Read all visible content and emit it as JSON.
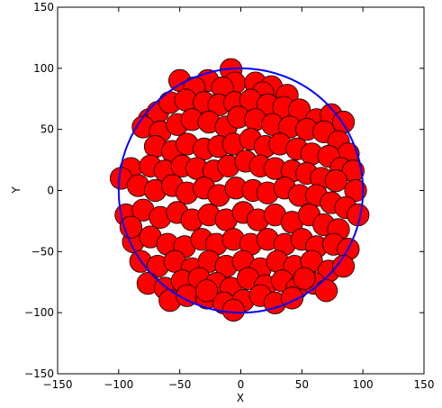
{
  "chart_data": {
    "type": "scatter",
    "title": "",
    "xlabel": "X",
    "ylabel": "Y",
    "xlim": [
      -150,
      150
    ],
    "ylim": [
      -150,
      150
    ],
    "xticks": [
      "−150",
      "−100",
      "−50",
      "0",
      "50",
      "100",
      "150"
    ],
    "yticks": [
      "−150",
      "−100",
      "−50",
      "0",
      "50",
      "100",
      "150"
    ],
    "grid": false,
    "legend": false,
    "marker_radius_units": 9,
    "marker_color": "#ff0000",
    "marker_edge_color": "#000000",
    "boundary_circle": {
      "center": [
        0,
        0
      ],
      "radius": 100,
      "color": "#0000ff"
    },
    "points": [
      [
        -8,
        99
      ],
      [
        -50,
        90
      ],
      [
        -27,
        90
      ],
      [
        -5,
        88
      ],
      [
        -15,
        84
      ],
      [
        -38,
        84
      ],
      [
        12,
        88
      ],
      [
        25,
        85
      ],
      [
        18,
        80
      ],
      [
        38,
        78
      ],
      [
        -75,
        58
      ],
      [
        -68,
        64
      ],
      [
        -58,
        72
      ],
      [
        -45,
        74
      ],
      [
        -30,
        72
      ],
      [
        -18,
        70
      ],
      [
        -5,
        72
      ],
      [
        8,
        74
      ],
      [
        22,
        70
      ],
      [
        35,
        68
      ],
      [
        48,
        66
      ],
      [
        62,
        58
      ],
      [
        74,
        62
      ],
      [
        84,
        56
      ],
      [
        -80,
        52
      ],
      [
        -66,
        48
      ],
      [
        -52,
        54
      ],
      [
        -40,
        58
      ],
      [
        -26,
        56
      ],
      [
        -12,
        52
      ],
      [
        -2,
        60
      ],
      [
        12,
        58
      ],
      [
        26,
        54
      ],
      [
        40,
        52
      ],
      [
        54,
        50
      ],
      [
        68,
        48
      ],
      [
        80,
        40
      ],
      [
        88,
        30
      ],
      [
        -70,
        36
      ],
      [
        -56,
        32
      ],
      [
        -44,
        38
      ],
      [
        -30,
        34
      ],
      [
        -18,
        36
      ],
      [
        -6,
        38
      ],
      [
        8,
        42
      ],
      [
        20,
        36
      ],
      [
        32,
        38
      ],
      [
        46,
        34
      ],
      [
        58,
        30
      ],
      [
        72,
        28
      ],
      [
        82,
        18
      ],
      [
        92,
        16
      ],
      [
        -90,
        18
      ],
      [
        -74,
        20
      ],
      [
        -62,
        16
      ],
      [
        -48,
        20
      ],
      [
        -36,
        18
      ],
      [
        -22,
        16
      ],
      [
        -10,
        20
      ],
      [
        4,
        24
      ],
      [
        16,
        20
      ],
      [
        28,
        18
      ],
      [
        42,
        16
      ],
      [
        54,
        14
      ],
      [
        66,
        10
      ],
      [
        78,
        8
      ],
      [
        94,
        0
      ],
      [
        -98,
        10
      ],
      [
        -84,
        4
      ],
      [
        -70,
        0
      ],
      [
        -56,
        4
      ],
      [
        -44,
        -2
      ],
      [
        -30,
        2
      ],
      [
        -18,
        -4
      ],
      [
        -4,
        2
      ],
      [
        10,
        0
      ],
      [
        22,
        -2
      ],
      [
        36,
        2
      ],
      [
        48,
        -4
      ],
      [
        62,
        -4
      ],
      [
        74,
        -10
      ],
      [
        86,
        -14
      ],
      [
        -94,
        -20
      ],
      [
        -80,
        -16
      ],
      [
        -66,
        -22
      ],
      [
        -52,
        -18
      ],
      [
        -40,
        -24
      ],
      [
        -26,
        -20
      ],
      [
        -12,
        -24
      ],
      [
        2,
        -18
      ],
      [
        14,
        -24
      ],
      [
        28,
        -20
      ],
      [
        42,
        -26
      ],
      [
        56,
        -20
      ],
      [
        68,
        -28
      ],
      [
        80,
        -32
      ],
      [
        96,
        -20
      ],
      [
        -88,
        -42
      ],
      [
        -74,
        -38
      ],
      [
        -60,
        -44
      ],
      [
        -46,
        -46
      ],
      [
        -32,
        -40
      ],
      [
        -20,
        -44
      ],
      [
        -6,
        -40
      ],
      [
        8,
        -44
      ],
      [
        22,
        -40
      ],
      [
        36,
        -44
      ],
      [
        50,
        -40
      ],
      [
        62,
        -46
      ],
      [
        76,
        -44
      ],
      [
        88,
        -48
      ],
      [
        -82,
        -58
      ],
      [
        -68,
        -62
      ],
      [
        -54,
        -58
      ],
      [
        -40,
        -64
      ],
      [
        -26,
        -58
      ],
      [
        -12,
        -62
      ],
      [
        2,
        -58
      ],
      [
        16,
        -64
      ],
      [
        30,
        -58
      ],
      [
        44,
        -62
      ],
      [
        58,
        -58
      ],
      [
        72,
        -66
      ],
      [
        84,
        -62
      ],
      [
        -76,
        -76
      ],
      [
        -62,
        -80
      ],
      [
        -48,
        -74
      ],
      [
        -34,
        -72
      ],
      [
        -20,
        -76
      ],
      [
        -8,
        -80
      ],
      [
        6,
        -72
      ],
      [
        20,
        -78
      ],
      [
        34,
        -74
      ],
      [
        46,
        -80
      ],
      [
        60,
        -76
      ],
      [
        70,
        -82
      ],
      [
        -58,
        -90
      ],
      [
        -44,
        -86
      ],
      [
        -28,
        -88
      ],
      [
        -14,
        -92
      ],
      [
        2,
        -90
      ],
      [
        16,
        -86
      ],
      [
        28,
        -92
      ],
      [
        42,
        -88
      ],
      [
        -6,
        -98
      ],
      [
        -28,
        -82
      ],
      [
        52,
        -72
      ],
      [
        -90,
        -30
      ]
    ]
  }
}
